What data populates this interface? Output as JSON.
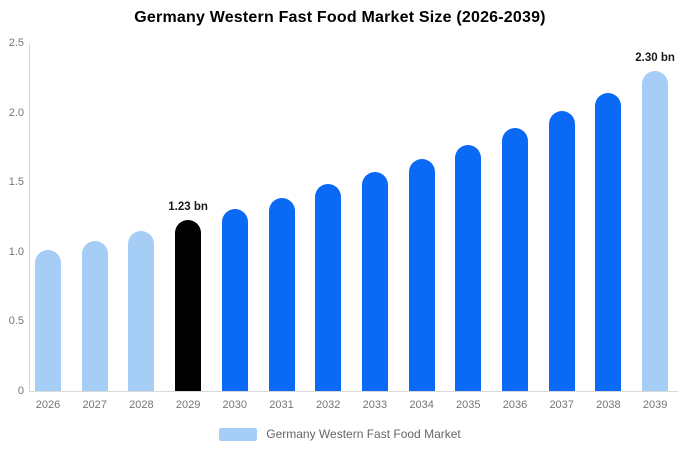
{
  "title": "Germany Western Fast Food Market Size (2026-2039)",
  "legend": {
    "label": "Germany Western Fast Food Market",
    "swatch_color": "#a5cdf6"
  },
  "colors": {
    "light_blue": "#a5cdf6",
    "blue": "#0b6af5",
    "black": "#000000",
    "axis_text": "#757575",
    "axis_line": "#d9d9d9",
    "annotation_text": "#1a1a1a",
    "background": "#ffffff"
  },
  "chart_data": {
    "type": "bar",
    "title": "Germany Western Fast Food Market Size (2026-2039)",
    "xlabel": "",
    "ylabel": "",
    "categories": [
      "2026",
      "2027",
      "2028",
      "2029",
      "2030",
      "2031",
      "2032",
      "2033",
      "2034",
      "2035",
      "2036",
      "2037",
      "2038",
      "2039"
    ],
    "values": [
      1.01,
      1.08,
      1.15,
      1.23,
      1.31,
      1.39,
      1.49,
      1.57,
      1.67,
      1.77,
      1.89,
      2.01,
      2.14,
      2.3
    ],
    "bar_colors": [
      "#a5cdf6",
      "#a5cdf6",
      "#a5cdf6",
      "#000000",
      "#0b6af5",
      "#0b6af5",
      "#0b6af5",
      "#0b6af5",
      "#0b6af5",
      "#0b6af5",
      "#0b6af5",
      "#0b6af5",
      "#0b6af5",
      "#a5cdf6"
    ],
    "annotations": [
      {
        "category": "2029",
        "text": "1.23 bn"
      },
      {
        "category": "2039",
        "text": "2.30 bn"
      }
    ],
    "ylim": [
      0,
      2.5
    ],
    "yticks": [
      0,
      0.5,
      1.0,
      1.5,
      2.0,
      2.5
    ],
    "ytick_labels": [
      "0",
      "0.5",
      "1.0",
      "1.5",
      "2.0",
      "2.5"
    ],
    "grid": false,
    "legend_position": "bottom",
    "legend_entries": [
      "Germany Western Fast Food Market"
    ]
  }
}
